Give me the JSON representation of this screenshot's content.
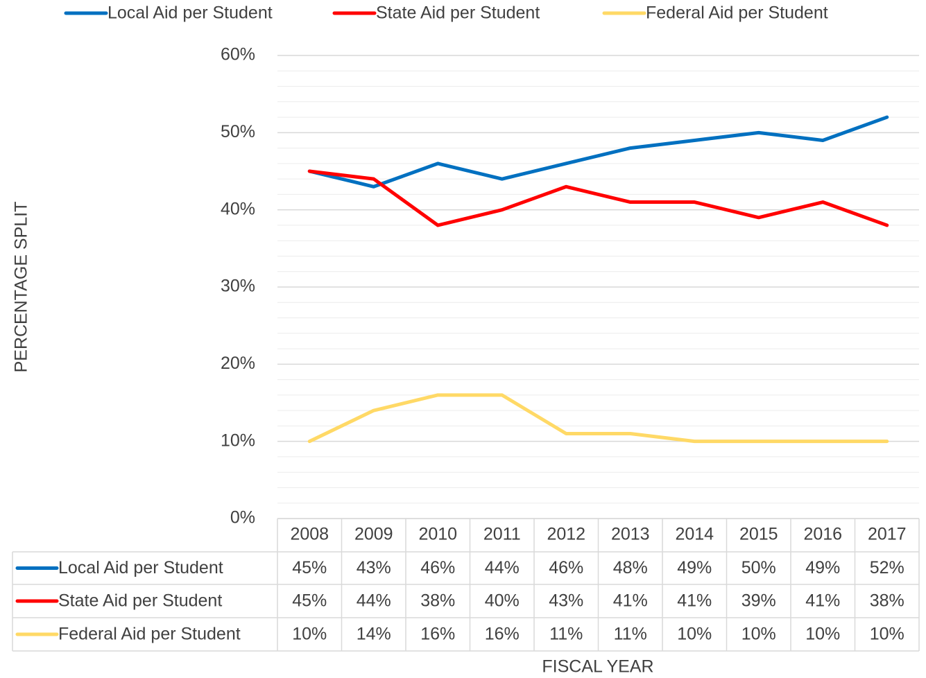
{
  "chart_data": {
    "type": "line",
    "x_label": "FISCAL YEAR",
    "y_label": "PERCENTAGE SPLIT",
    "categories": [
      "2008",
      "2009",
      "2010",
      "2011",
      "2012",
      "2013",
      "2014",
      "2015",
      "2016",
      "2017"
    ],
    "series": [
      {
        "name": "Local Aid per Student",
        "color": "#0070c0",
        "values": [
          45,
          43,
          46,
          44,
          46,
          48,
          49,
          50,
          49,
          52
        ],
        "value_labels": [
          "45%",
          "43%",
          "46%",
          "44%",
          "46%",
          "48%",
          "49%",
          "50%",
          "49%",
          "52%"
        ]
      },
      {
        "name": "State Aid per Student",
        "color": "#ff0000",
        "values": [
          45,
          44,
          38,
          40,
          43,
          41,
          41,
          39,
          41,
          38
        ],
        "value_labels": [
          "45%",
          "44%",
          "38%",
          "40%",
          "43%",
          "41%",
          "41%",
          "39%",
          "41%",
          "38%"
        ]
      },
      {
        "name": "Federal Aid per Student",
        "color": "#ffd966",
        "values": [
          10,
          14,
          16,
          16,
          11,
          11,
          10,
          10,
          10,
          10
        ],
        "value_labels": [
          "10%",
          "14%",
          "16%",
          "16%",
          "11%",
          "11%",
          "10%",
          "10%",
          "10%",
          "10%"
        ]
      }
    ],
    "ylim": [
      0,
      60
    ],
    "yticks": [
      {
        "value": 0,
        "label": "0%"
      },
      {
        "value": 10,
        "label": "10%"
      },
      {
        "value": 20,
        "label": "20%"
      },
      {
        "value": 30,
        "label": "30%"
      },
      {
        "value": 40,
        "label": "40%"
      },
      {
        "value": 50,
        "label": "50%"
      },
      {
        "value": 60,
        "label": "60%"
      }
    ],
    "yticks_minor": [
      2,
      4,
      6,
      8,
      12,
      14,
      16,
      18,
      22,
      24,
      26,
      28,
      32,
      34,
      36,
      38,
      42,
      44,
      46,
      48,
      52,
      54,
      56,
      58
    ],
    "grid": true,
    "legend": "top",
    "data_table": true
  }
}
